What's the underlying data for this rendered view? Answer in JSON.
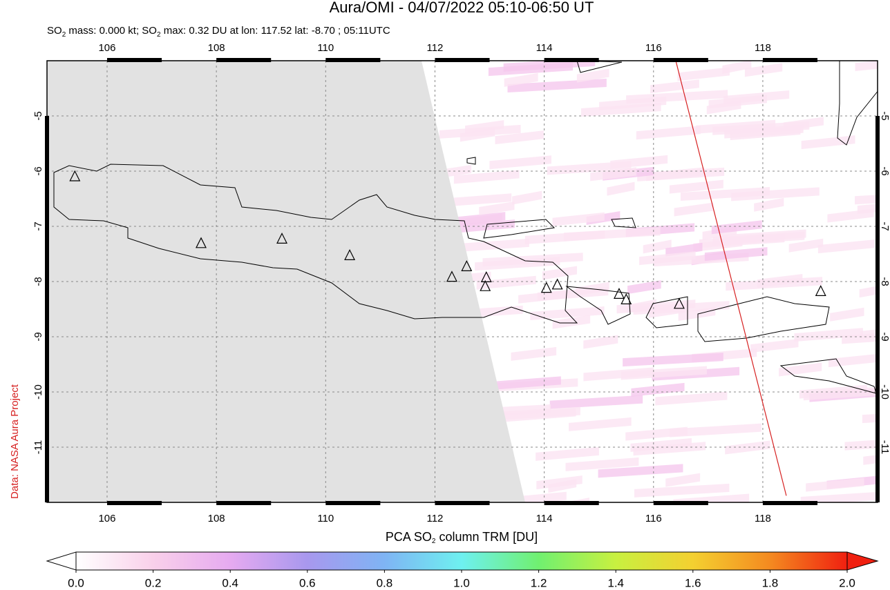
{
  "header": {
    "title": "Aura/OMI - 04/07/2022 05:10-06:50 UT",
    "subtitle": [
      "SO",
      "2",
      " mass: 0.000 kt; SO",
      "2",
      " max: 0.32 DU at lon: 117.52 lat: -8.70 ; 05:11UTC"
    ]
  },
  "credit": "Data: NASA Aura Project",
  "map": {
    "xlim": [
      104.9,
      120.1
    ],
    "ylim": [
      -12,
      -4
    ],
    "xticks": [
      106,
      108,
      110,
      112,
      114,
      116,
      118
    ],
    "yticks": [
      -5,
      -6,
      -7,
      -8,
      -9,
      -10,
      -11
    ],
    "grid": true,
    "volcanoes": {
      "lon": [
        105.41,
        107.72,
        109.2,
        110.44,
        112.31,
        112.58,
        112.94,
        112.92,
        114.04,
        114.24,
        115.37,
        115.5,
        116.47,
        119.06
      ],
      "lat": [
        -6.1,
        -7.31,
        -7.23,
        -7.53,
        -7.92,
        -7.73,
        -7.93,
        -8.09,
        -8.12,
        -8.06,
        -8.23,
        -8.33,
        -8.41,
        -8.18
      ]
    },
    "orbit_track": {
      "lon": [
        116.41,
        118.43
      ],
      "lat": [
        -4.01,
        -11.88
      ],
      "color": "#d62020"
    }
  },
  "colorbar": {
    "title": [
      "PCA SO",
      "2",
      " column TRM [DU]"
    ],
    "lim": [
      0,
      2
    ],
    "ticks": [
      {
        "value": 0,
        "label": "0.0"
      },
      0.2,
      0.4,
      0.6,
      0.8,
      {
        "value": 1,
        "label": "1.0"
      },
      1.2,
      1.4,
      1.6,
      1.8,
      {
        "value": 2,
        "label": "2.0"
      }
    ],
    "colors": [
      "#ffffff",
      "#f9d0ea",
      "#e6aaf0",
      "#a898ee",
      "#7fb4f4",
      "#6ef0f0",
      "#70f070",
      "#c8f040",
      "#f4d030",
      "#f48a20",
      "#f02010"
    ]
  }
}
